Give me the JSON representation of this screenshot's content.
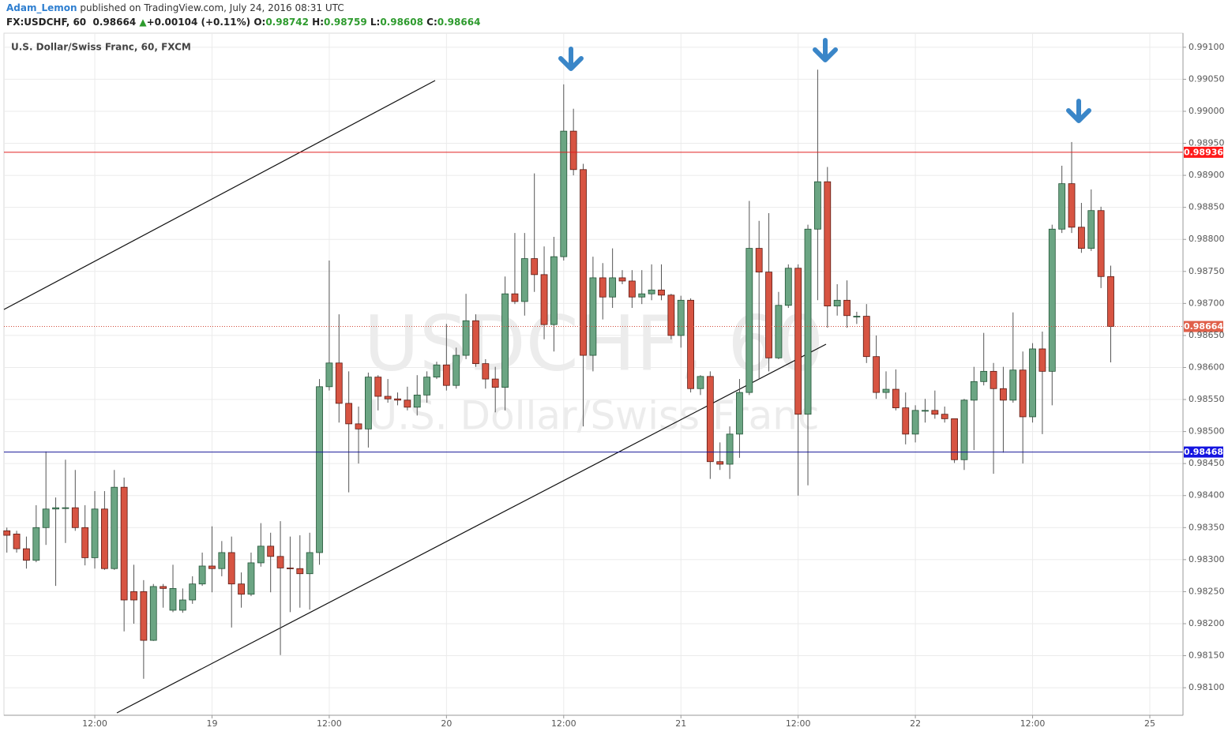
{
  "header": {
    "author": "Adam_Lemon",
    "published": "published on TradingView.com, July 24, 2016 08:31 UTC",
    "symbol": "FX:USDCHF, 60",
    "last": "0.98664",
    "change": "+0.00104 (+0.11%)",
    "o_label": "O:",
    "open": "0.98742",
    "h_label": "H:",
    "high": "0.98759",
    "l_label": "L:",
    "low": "0.98608",
    "c_label": "C:",
    "close": "0.98664"
  },
  "chart_data": {
    "type": "candlestick",
    "title": "U.S. Dollar/Swiss Franc, 60, FXCM",
    "watermark": "USDCHF, 60",
    "watermark_subtitle": "U.S. Dollar/Swiss Franc",
    "up_color": "#6ba583",
    "down_color": "#d75442",
    "grid": true,
    "categories": [
      null,
      null,
      null,
      null,
      null,
      null,
      null,
      null,
      null,
      "12:00",
      null,
      null,
      null,
      null,
      null,
      null,
      null,
      null,
      null,
      null,
      null,
      "19",
      null,
      null,
      null,
      null,
      null,
      null,
      null,
      null,
      null,
      null,
      null,
      "12:00",
      null,
      null,
      null,
      null,
      null,
      null,
      null,
      null,
      null,
      null,
      null,
      "20",
      null,
      null,
      null,
      null,
      null,
      null,
      null,
      null,
      null,
      null,
      null,
      "12:00",
      null,
      null,
      null,
      null,
      null,
      null,
      null,
      null,
      null,
      null,
      null,
      "21",
      null,
      null,
      null,
      null,
      null,
      null,
      null,
      null,
      null,
      null,
      null,
      "12:00",
      null,
      null,
      null,
      null,
      null,
      null,
      null,
      null,
      null,
      null,
      null,
      "22",
      null,
      null,
      null,
      null,
      null,
      null,
      null,
      null,
      null,
      null,
      null,
      "12:00",
      null,
      null,
      null,
      null,
      null,
      null,
      null,
      null,
      null,
      null,
      null,
      "25"
    ],
    "open": [
      0.98345,
      0.9834,
      0.98317,
      0.98299,
      0.9835,
      0.98379,
      0.98381,
      0.98381,
      0.9835,
      0.98303,
      0.98379,
      0.98286,
      0.98413,
      0.9825,
      0.9825,
      0.98174,
      0.98258,
      0.98221,
      0.98221,
      0.98237,
      0.98262,
      0.9829,
      0.98286,
      0.98311,
      0.98262,
      0.98246,
      0.98295,
      0.98321,
      0.98305,
      0.98287,
      0.98286,
      0.98278,
      0.98311,
      0.9857,
      0.98607,
      0.98544,
      0.98512,
      0.98504,
      0.98585,
      0.98555,
      0.98551,
      0.98549,
      0.98538,
      0.98557,
      0.98585,
      0.98604,
      0.98572,
      0.98619,
      0.98673,
      0.98606,
      0.98582,
      0.98569,
      0.98715,
      0.98703,
      0.9877,
      0.98745,
      0.98667,
      0.98773,
      0.98969,
      0.98909,
      0.98619,
      0.9874,
      0.9871,
      0.9874,
      0.98735,
      0.9871,
      0.98715,
      0.98721,
      0.98713,
      0.9865,
      0.98705,
      0.98567,
      0.98586,
      0.98453,
      0.98449,
      0.98496,
      0.98561,
      0.98786,
      0.98749,
      0.98615,
      0.98697,
      0.98755,
      0.98527,
      0.98816,
      0.9889,
      0.98696,
      0.98705,
      0.9868,
      0.9868,
      0.98617,
      0.98561,
      0.98566,
      0.98537,
      0.98496,
      0.98533,
      0.98533,
      0.98527,
      0.9852,
      0.98456,
      0.98549,
      0.98578,
      0.98594,
      0.98567,
      0.98549,
      0.98596,
      0.98523,
      0.98629,
      0.98594,
      0.98816,
      0.98887,
      0.98819,
      0.98786,
      0.98845,
      0.98742,
      null,
      null,
      null,
      null
    ],
    "high": [
      0.9835,
      0.98345,
      0.98336,
      0.98385,
      0.98469,
      0.98397,
      0.98456,
      0.9844,
      0.98385,
      0.98407,
      0.98407,
      0.9844,
      0.98428,
      0.98292,
      0.98268,
      0.98262,
      0.98262,
      0.98292,
      0.98255,
      0.98274,
      0.98311,
      0.98352,
      0.98329,
      0.98336,
      0.9828,
      0.98311,
      0.98357,
      0.98342,
      0.9836,
      0.98336,
      0.98338,
      0.98342,
      0.98582,
      0.98767,
      0.98683,
      0.98594,
      0.98539,
      0.98592,
      0.98588,
      0.98582,
      0.98561,
      0.9857,
      0.98588,
      0.98594,
      0.98609,
      0.98668,
      0.98631,
      0.98715,
      0.98683,
      0.98613,
      0.98601,
      0.98742,
      0.9881,
      0.9881,
      0.98903,
      0.98789,
      0.98804,
      0.99042,
      0.99004,
      0.98918,
      0.98773,
      0.98763,
      0.98786,
      0.98752,
      0.98752,
      0.98752,
      0.98761,
      0.98761,
      0.98715,
      0.98712,
      0.98708,
      0.98588,
      0.98594,
      0.98483,
      0.98508,
      0.98582,
      0.9886,
      0.98829,
      0.98841,
      0.98718,
      0.98761,
      0.98761,
      0.98823,
      0.99065,
      0.98913,
      0.9873,
      0.98736,
      0.98687,
      0.98699,
      0.9865,
      0.98594,
      0.98597,
      0.98561,
      0.98541,
      0.98551,
      0.98564,
      0.98539,
      0.9852,
      0.98551,
      0.98601,
      0.98654,
      0.98607,
      0.98601,
      0.98686,
      0.98625,
      0.98638,
      0.98656,
      0.98823,
      0.98915,
      0.98952,
      0.98857,
      0.98878,
      0.98851,
      0.98759,
      null,
      null,
      null,
      null
    ],
    "low": [
      0.98311,
      0.98311,
      0.98286,
      0.98296,
      0.98323,
      0.98259,
      0.98326,
      0.98345,
      0.98291,
      0.98286,
      0.98284,
      0.98284,
      0.98188,
      0.982,
      0.98114,
      0.98173,
      0.98225,
      0.98218,
      0.98217,
      0.98231,
      0.98259,
      0.98249,
      0.98274,
      0.98194,
      0.98225,
      0.98243,
      0.98289,
      0.98249,
      0.98151,
      0.98218,
      0.98225,
      0.98222,
      0.98292,
      0.98564,
      0.98514,
      0.98405,
      0.9845,
      0.98475,
      0.98533,
      0.98545,
      0.98541,
      0.98533,
      0.98525,
      0.98545,
      0.98582,
      0.98564,
      0.98567,
      0.98613,
      0.98601,
      0.98567,
      0.9853,
      0.98533,
      0.98699,
      0.98681,
      0.98718,
      0.98644,
      0.98625,
      0.98767,
      0.989,
      0.98508,
      0.98594,
      0.98675,
      0.98693,
      0.9873,
      0.98693,
      0.98699,
      0.98705,
      0.98705,
      0.98644,
      0.98631,
      0.98561,
      0.98557,
      0.98426,
      0.9844,
      0.98426,
      0.98459,
      0.98557,
      0.98582,
      0.98594,
      0.98613,
      0.98693,
      0.984,
      0.98416,
      0.98705,
      0.98662,
      0.98681,
      0.98662,
      0.98668,
      0.98607,
      0.98551,
      0.98551,
      0.98533,
      0.9848,
      0.98483,
      0.98514,
      0.9852,
      0.98514,
      0.98451,
      0.9844,
      0.98471,
      0.98572,
      0.98434,
      0.98467,
      0.98545,
      0.9845,
      0.98514,
      0.98496,
      0.98541,
      0.9881,
      0.9881,
      0.98779,
      0.98782,
      0.98724,
      0.98608,
      null,
      null,
      null,
      null
    ],
    "close": [
      0.98338,
      0.98317,
      0.98299,
      0.9835,
      0.98379,
      0.98381,
      0.98381,
      0.9835,
      0.98303,
      0.98379,
      0.98286,
      0.98413,
      0.98237,
      0.98237,
      0.98174,
      0.98258,
      0.98255,
      0.98255,
      0.98237,
      0.98262,
      0.9829,
      0.98286,
      0.98311,
      0.98262,
      0.98246,
      0.98295,
      0.98321,
      0.98305,
      0.98287,
      0.98286,
      0.98278,
      0.98311,
      0.9857,
      0.98607,
      0.98544,
      0.98512,
      0.98504,
      0.98585,
      0.98555,
      0.98551,
      0.98549,
      0.98538,
      0.98557,
      0.98585,
      0.98604,
      0.98572,
      0.98619,
      0.98673,
      0.98606,
      0.98582,
      0.98569,
      0.98715,
      0.98703,
      0.9877,
      0.98745,
      0.98667,
      0.98773,
      0.98969,
      0.98909,
      0.98619,
      0.9874,
      0.9871,
      0.9874,
      0.98735,
      0.9871,
      0.98715,
      0.98721,
      0.98713,
      0.9865,
      0.98705,
      0.98567,
      0.98586,
      0.98453,
      0.98449,
      0.98496,
      0.98561,
      0.98786,
      0.98749,
      0.98615,
      0.98697,
      0.98755,
      0.98527,
      0.98816,
      0.9889,
      0.98696,
      0.98705,
      0.98681,
      0.9868,
      0.98617,
      0.98561,
      0.98566,
      0.98537,
      0.98496,
      0.98533,
      0.98533,
      0.98527,
      0.9852,
      0.98456,
      0.98549,
      0.98578,
      0.98594,
      0.98567,
      0.98549,
      0.98596,
      0.98523,
      0.98629,
      0.98594,
      0.98816,
      0.98887,
      0.98819,
      0.98786,
      0.98845,
      0.98742,
      0.98664,
      null,
      null,
      null,
      null
    ],
    "ylim": [
      0.98057,
      0.99122
    ],
    "yticks": [
      {
        "value": 0.981,
        "label": "0.98100"
      },
      {
        "value": 0.9815,
        "label": "0.98150"
      },
      {
        "value": 0.982,
        "label": "0.98200"
      },
      {
        "value": 0.9825,
        "label": "0.98250"
      },
      {
        "value": 0.983,
        "label": "0.98300"
      },
      {
        "value": 0.9835,
        "label": "0.98350"
      },
      {
        "value": 0.984,
        "label": "0.98400"
      },
      {
        "value": 0.9845,
        "label": "0.98450"
      },
      {
        "value": 0.985,
        "label": "0.98500"
      },
      {
        "value": 0.9855,
        "label": "0.98550"
      },
      {
        "value": 0.986,
        "label": "0.98600"
      },
      {
        "value": 0.9865,
        "label": "0.98650"
      },
      {
        "value": 0.987,
        "label": "0.98700"
      },
      {
        "value": 0.9875,
        "label": "0.98750"
      },
      {
        "value": 0.988,
        "label": "0.98800"
      },
      {
        "value": 0.9885,
        "label": "0.98850"
      },
      {
        "value": 0.989,
        "label": "0.98900"
      },
      {
        "value": 0.9895,
        "label": "0.98950"
      },
      {
        "value": 0.99,
        "label": "0.99000"
      },
      {
        "value": 0.9905,
        "label": "0.99050"
      },
      {
        "value": 0.991,
        "label": "0.99100"
      }
    ],
    "hlines": [
      {
        "value": 0.98936,
        "color": "#e02020",
        "tag_color": "#ff1a1a",
        "style": "solid"
      },
      {
        "value": 0.98664,
        "color": "#d24a38",
        "tag_color": "#e0604a",
        "style": "dotted"
      },
      {
        "value": 0.98468,
        "color": "#1a1a9a",
        "tag_color": "#1414e0",
        "style": "solid"
      }
    ]
  }
}
